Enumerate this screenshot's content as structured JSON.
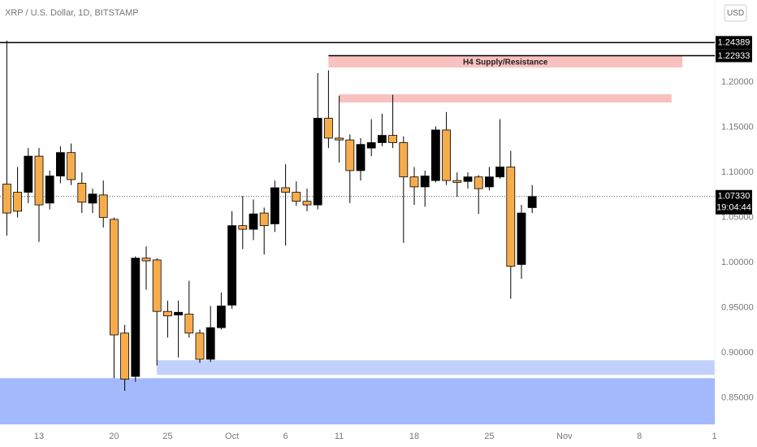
{
  "chart_data": {
    "type": "candlestick",
    "title": "XRP / U.S. Dollar, 1D, BITSTAMP",
    "currency_button": "USD",
    "categories": [
      null,
      null,
      null,
      "13",
      null,
      null,
      null,
      null,
      null,
      null,
      "20",
      null,
      null,
      null,
      null,
      "25",
      null,
      null,
      null,
      null,
      null,
      "Oct",
      null,
      null,
      null,
      null,
      "6",
      null,
      null,
      null,
      null,
      "11",
      null,
      null,
      null,
      null,
      null,
      null,
      "18",
      null,
      null,
      null,
      null,
      null,
      null,
      "25",
      null,
      null,
      null,
      null,
      null,
      null,
      "Nov",
      null,
      null,
      null,
      null,
      null,
      null,
      "8",
      null,
      null,
      null,
      null,
      null,
      null,
      "1"
    ],
    "open": [
      1.087,
      1.078,
      1.078,
      1.118,
      1.066,
      1.096,
      1.122,
      1.088,
      1.066,
      1.075,
      1.048,
      0.922,
      0.874,
      1.005,
      1.003,
      0.946,
      0.942,
      0.943,
      0.922,
      0.893,
      0.928,
      0.953,
      1.041,
      1.037,
      1.055,
      1.043,
      1.083,
      1.078,
      1.068,
      1.064,
      1.16,
      1.138,
      1.136,
      1.102,
      1.127,
      1.133,
      1.141,
      1.133,
      1.095,
      1.084,
      1.091,
      1.147,
      1.091,
      1.09,
      1.095,
      1.084,
      1.095,
      1.106,
      0.998,
      1.061,
      null,
      null,
      null,
      null,
      null,
      null,
      null,
      null,
      null,
      null,
      null,
      null,
      null,
      null,
      null,
      null,
      null
    ],
    "high": [
      1.246,
      1.106,
      1.127,
      1.127,
      1.102,
      1.129,
      1.132,
      1.1,
      1.082,
      1.091,
      1.05,
      0.931,
      1.007,
      1.018,
      1.005,
      0.958,
      0.958,
      0.98,
      0.926,
      0.952,
      0.967,
      1.057,
      1.074,
      1.07,
      1.061,
      1.091,
      1.109,
      1.09,
      1.082,
      1.21,
      1.213,
      1.185,
      1.142,
      1.138,
      1.159,
      1.165,
      1.186,
      1.14,
      1.106,
      1.102,
      1.151,
      1.167,
      1.1,
      1.1,
      1.097,
      1.106,
      1.159,
      1.124,
      1.064,
      1.086,
      null,
      null,
      null,
      null,
      null,
      null,
      null,
      null,
      null,
      null,
      null,
      null,
      null,
      null,
      null,
      null,
      null
    ],
    "low": [
      1.03,
      1.05,
      1.066,
      1.023,
      1.059,
      1.088,
      1.086,
      1.055,
      1.055,
      1.039,
      0.872,
      0.858,
      0.868,
      0.97,
      0.886,
      0.917,
      0.895,
      0.917,
      0.889,
      0.89,
      0.926,
      0.949,
      1.015,
      1.025,
      1.009,
      1.034,
      1.019,
      1.063,
      1.057,
      1.059,
      1.127,
      1.111,
      1.066,
      1.091,
      1.118,
      1.129,
      1.127,
      1.022,
      1.064,
      1.062,
      1.089,
      1.086,
      1.073,
      1.082,
      1.054,
      1.08,
      1.093,
      0.96,
      0.982,
      1.055,
      null,
      null,
      null,
      null,
      null,
      null,
      null,
      null,
      null,
      null,
      null,
      null,
      null,
      null,
      null,
      null,
      null
    ],
    "close": [
      1.055,
      1.057,
      1.118,
      1.064,
      1.096,
      1.122,
      1.092,
      1.067,
      1.076,
      1.05,
      0.92,
      0.871,
      1.005,
      1.002,
      0.946,
      0.941,
      0.945,
      0.922,
      0.893,
      0.928,
      0.952,
      1.041,
      1.037,
      1.054,
      1.041,
      1.083,
      1.078,
      1.068,
      1.064,
      1.16,
      1.138,
      1.136,
      1.102,
      1.131,
      1.133,
      1.141,
      1.133,
      1.095,
      1.084,
      1.096,
      1.147,
      1.091,
      1.089,
      1.095,
      1.082,
      1.095,
      1.106,
      0.996,
      1.055,
      1.0733,
      null,
      null,
      null,
      null,
      null,
      null,
      null,
      null,
      null,
      null,
      null,
      null,
      null,
      null,
      null,
      null,
      null
    ],
    "up_color": "#000000",
    "down_color": "#f7ac4c",
    "ylim": [
      0.821,
      1.291
    ],
    "yticks": [
      {
        "value": 0.85,
        "label": "0.85000"
      },
      {
        "value": 0.9,
        "label": "0.90000"
      },
      {
        "value": 0.95,
        "label": "0.95000"
      },
      {
        "value": 1.0,
        "label": "1.00000"
      },
      {
        "value": 1.05,
        "label": "1.05000"
      },
      {
        "value": 1.1,
        "label": "1.10000"
      },
      {
        "value": 1.15,
        "label": "1.15000"
      },
      {
        "value": 1.2,
        "label": "1.20000"
      }
    ],
    "lines": [
      {
        "value": 1.24389,
        "label": "1.24389"
      },
      {
        "value": 1.22933,
        "label": "1.22933",
        "start": 30
      }
    ],
    "current_price": {
      "value": 1.0733,
      "label": "1.07330",
      "countdown": "19:04:44"
    },
    "zones": [
      {
        "label": "H4 Supply/Resistance",
        "top": 1.2293,
        "bottom": 1.2162,
        "start": 30,
        "end": 63,
        "color": "#f9c1bf"
      },
      {
        "top": 1.1865,
        "bottom": 1.1775,
        "start": 31,
        "end": 62,
        "color": "#f9c1bf"
      },
      {
        "top": 0.8919,
        "bottom": 0.8757,
        "start": 14,
        "end": 66,
        "color": "#c2d1fb"
      },
      {
        "top": 0.872,
        "bottom": 0.821,
        "color": "#a3b9fb"
      }
    ]
  }
}
